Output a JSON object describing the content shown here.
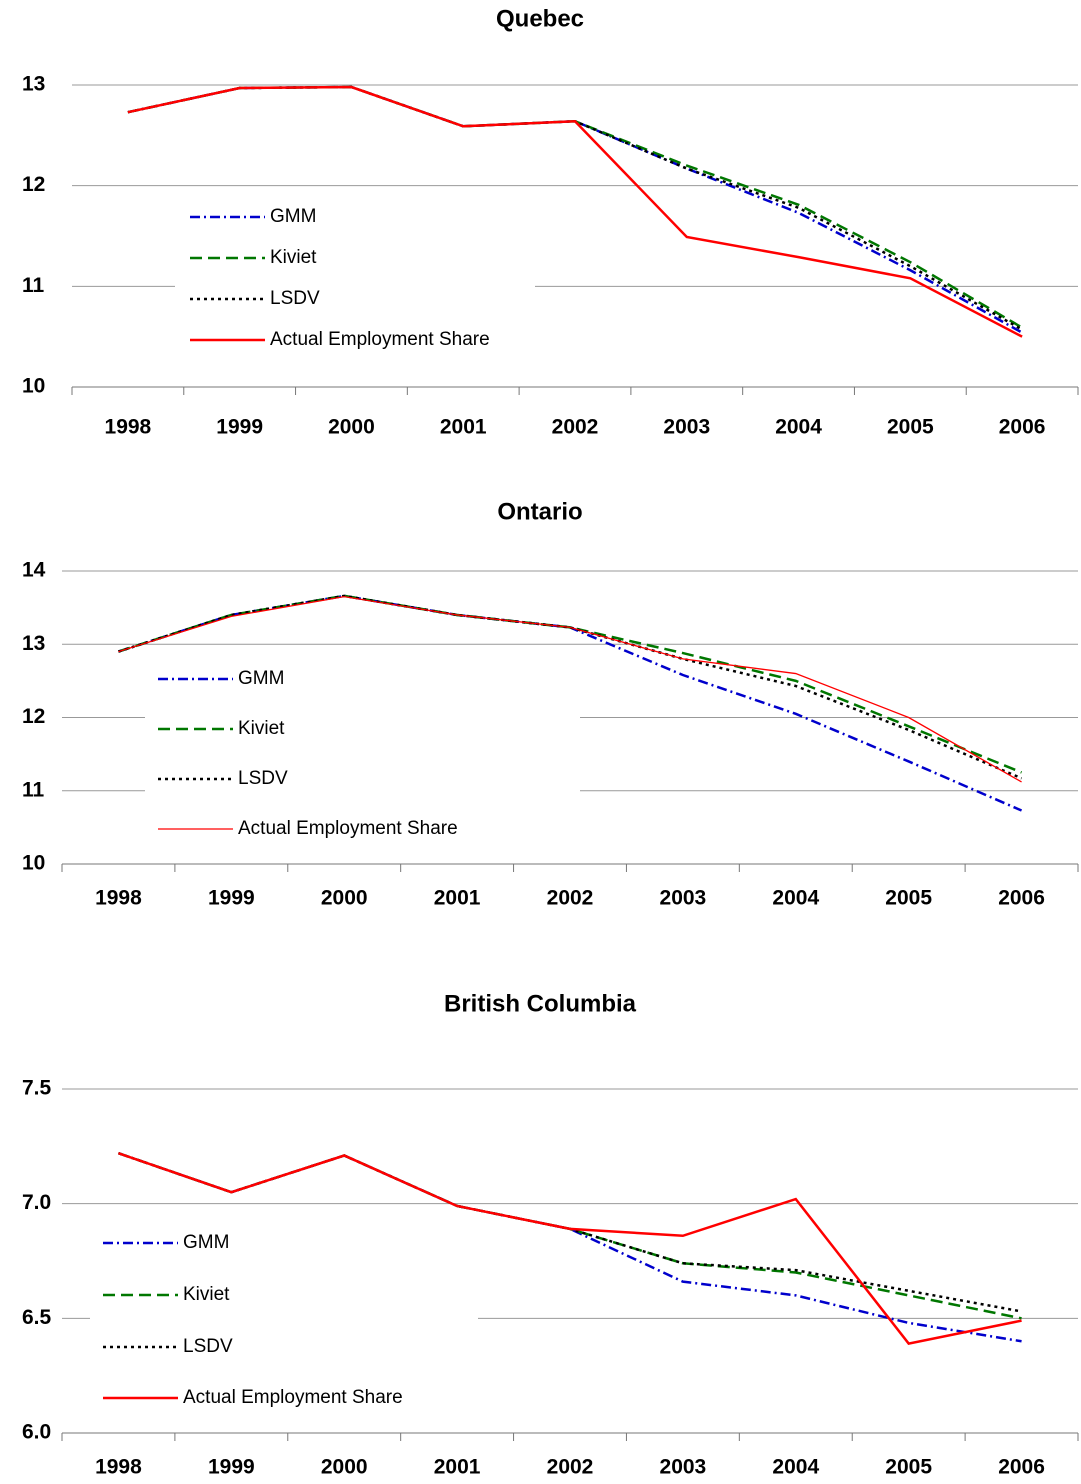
{
  "chart_data": [
    {
      "type": "line",
      "title": "Quebec",
      "categories": [
        "1998",
        "1999",
        "2000",
        "2001",
        "2002",
        "2003",
        "2004",
        "2005",
        "2006"
      ],
      "ylim": [
        10,
        13
      ],
      "yticks": [
        10,
        11,
        12,
        13
      ],
      "grid": true,
      "legend": "left",
      "series": [
        {
          "name": "GMM",
          "color": "#0000cc",
          "dash": "dashdot",
          "values": [
            12.73,
            12.97,
            12.98,
            12.59,
            12.64,
            12.17,
            11.73,
            11.16,
            10.54
          ]
        },
        {
          "name": "Kiviet",
          "color": "#007700",
          "dash": "dashed",
          "values": [
            12.73,
            12.97,
            12.98,
            12.59,
            12.64,
            12.2,
            11.81,
            11.24,
            10.59
          ]
        },
        {
          "name": "LSDV",
          "color": "#000000",
          "dash": "dotted",
          "values": [
            12.73,
            12.97,
            12.98,
            12.59,
            12.64,
            12.17,
            11.78,
            11.2,
            10.57
          ]
        },
        {
          "name": "Actual Employment Share",
          "color": "#ff0000",
          "dash": "solid",
          "values": [
            12.73,
            12.97,
            12.98,
            12.59,
            12.64,
            11.49,
            11.29,
            11.08,
            10.5
          ]
        }
      ]
    },
    {
      "type": "line",
      "title": "Ontario",
      "categories": [
        "1998",
        "1999",
        "2000",
        "2001",
        "2002",
        "2003",
        "2004",
        "2005",
        "2006"
      ],
      "ylim": [
        10,
        14
      ],
      "yticks": [
        10,
        11,
        12,
        13,
        14
      ],
      "grid": true,
      "legend": "left",
      "series": [
        {
          "name": "GMM",
          "color": "#0000cc",
          "dash": "dashdot",
          "values": [
            12.9,
            13.4,
            13.66,
            13.4,
            13.23,
            12.58,
            12.05,
            11.4,
            10.73
          ]
        },
        {
          "name": "Kiviet",
          "color": "#007700",
          "dash": "dashed",
          "values": [
            12.9,
            13.4,
            13.66,
            13.4,
            13.23,
            12.88,
            12.5,
            11.88,
            11.25
          ]
        },
        {
          "name": "LSDV",
          "color": "#000000",
          "dash": "dotted",
          "values": [
            12.9,
            13.4,
            13.66,
            13.4,
            13.23,
            12.8,
            12.43,
            11.83,
            11.17
          ]
        },
        {
          "name": "Actual Employment Share",
          "color": "#ff0000",
          "dash": "thin",
          "values": [
            12.9,
            13.38,
            13.65,
            13.4,
            13.23,
            12.8,
            12.6,
            12.0,
            11.12
          ]
        }
      ]
    },
    {
      "type": "line",
      "title": "British Columbia",
      "categories": [
        "1998",
        "1999",
        "2000",
        "2001",
        "2002",
        "2003",
        "2004",
        "2005",
        "2006"
      ],
      "ylim": [
        6,
        7.5
      ],
      "yticks": [
        {
          "value": 6,
          "label": "6.0"
        },
        6.5,
        {
          "value": 7,
          "label": "7.0"
        },
        7.5
      ],
      "grid": true,
      "legend": "left",
      "series": [
        {
          "name": "GMM",
          "color": "#0000cc",
          "dash": "dashdot",
          "values": [
            7.22,
            7.05,
            7.21,
            6.99,
            6.89,
            6.66,
            6.6,
            6.48,
            6.4
          ]
        },
        {
          "name": "Kiviet",
          "color": "#007700",
          "dash": "dashed",
          "values": [
            7.22,
            7.05,
            7.21,
            6.99,
            6.89,
            6.74,
            6.7,
            6.6,
            6.5
          ]
        },
        {
          "name": "LSDV",
          "color": "#000000",
          "dash": "dotted",
          "values": [
            7.22,
            7.05,
            7.21,
            6.99,
            6.89,
            6.74,
            6.71,
            6.62,
            6.53
          ]
        },
        {
          "name": "Actual Employment Share",
          "color": "#ff0000",
          "dash": "solid",
          "values": [
            7.22,
            7.05,
            7.21,
            6.99,
            6.89,
            6.86,
            7.02,
            6.39,
            6.49
          ]
        }
      ]
    }
  ]
}
